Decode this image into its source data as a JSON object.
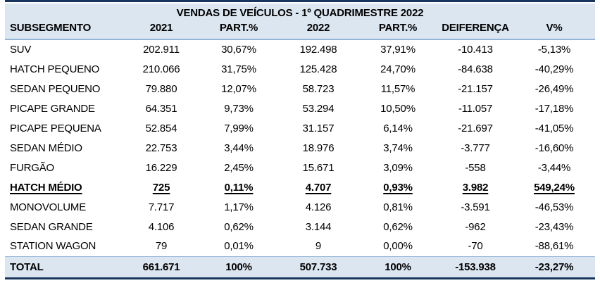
{
  "chart_data": {
    "type": "table",
    "title": "VENDAS DE VEÍCULOS - 1º QUADRIMESTRE 2022",
    "columns": [
      "SUBSEGMENTO",
      "2021",
      "PART.%",
      "2022",
      "PART.%",
      "DEIFERENÇA",
      "V%"
    ],
    "rows": [
      [
        "SUV",
        "202.911",
        "30,67%",
        "192.498",
        "37,91%",
        "-10.413",
        "-5,13%"
      ],
      [
        "HATCH PEQUENO",
        "210.066",
        "31,75%",
        "125.428",
        "24,70%",
        "-84.638",
        "-40,29%"
      ],
      [
        "SEDAN PEQUENO",
        "79.880",
        "12,07%",
        "58.723",
        "11,57%",
        "-21.157",
        "-26,49%"
      ],
      [
        "PICAPE GRANDE",
        "64.351",
        "9,73%",
        "53.294",
        "10,50%",
        "-11.057",
        "-17,18%"
      ],
      [
        "PICAPE PEQUENA",
        "52.854",
        "7,99%",
        "31.157",
        "6,14%",
        "-21.697",
        "-41,05%"
      ],
      [
        "SEDAN MÉDIO",
        "22.753",
        "3,44%",
        "18.976",
        "3,74%",
        "-3.777",
        "-16,60%"
      ],
      [
        "FURGÃO",
        "16.229",
        "2,45%",
        "15.671",
        "3,09%",
        "-558",
        "-3,44%"
      ],
      [
        "HATCH MÉDIO",
        "725",
        "0,11%",
        "4.707",
        "0,93%",
        "3.982",
        "549,24%"
      ],
      [
        "MONOVOLUME",
        "7.717",
        "1,17%",
        "4.126",
        "0,81%",
        "-3.591",
        "-46,53%"
      ],
      [
        "SEDAN GRANDE",
        "4.106",
        "0,62%",
        "3.144",
        "0,62%",
        "-962",
        "-23,43%"
      ],
      [
        "STATION WAGON",
        "79",
        "0,01%",
        "9",
        "0,00%",
        "-70",
        "-88,61%"
      ]
    ],
    "total_row": [
      "TOTAL",
      "661.671",
      "100%",
      "507.733",
      "100%",
      "-153.938",
      "-23,27%"
    ],
    "emphasis_row_index": 7,
    "layout": {
      "header_background": "light-blue band containing title and column headers",
      "grid": "no vertical gridlines; horizontal rules under header and around total row"
    }
  },
  "colors": {
    "header_band": "#dce6f1",
    "rule_light": "#95b3d7",
    "rule_dark": "#17365d",
    "row_background": "#ffffff",
    "text": "#000000"
  }
}
